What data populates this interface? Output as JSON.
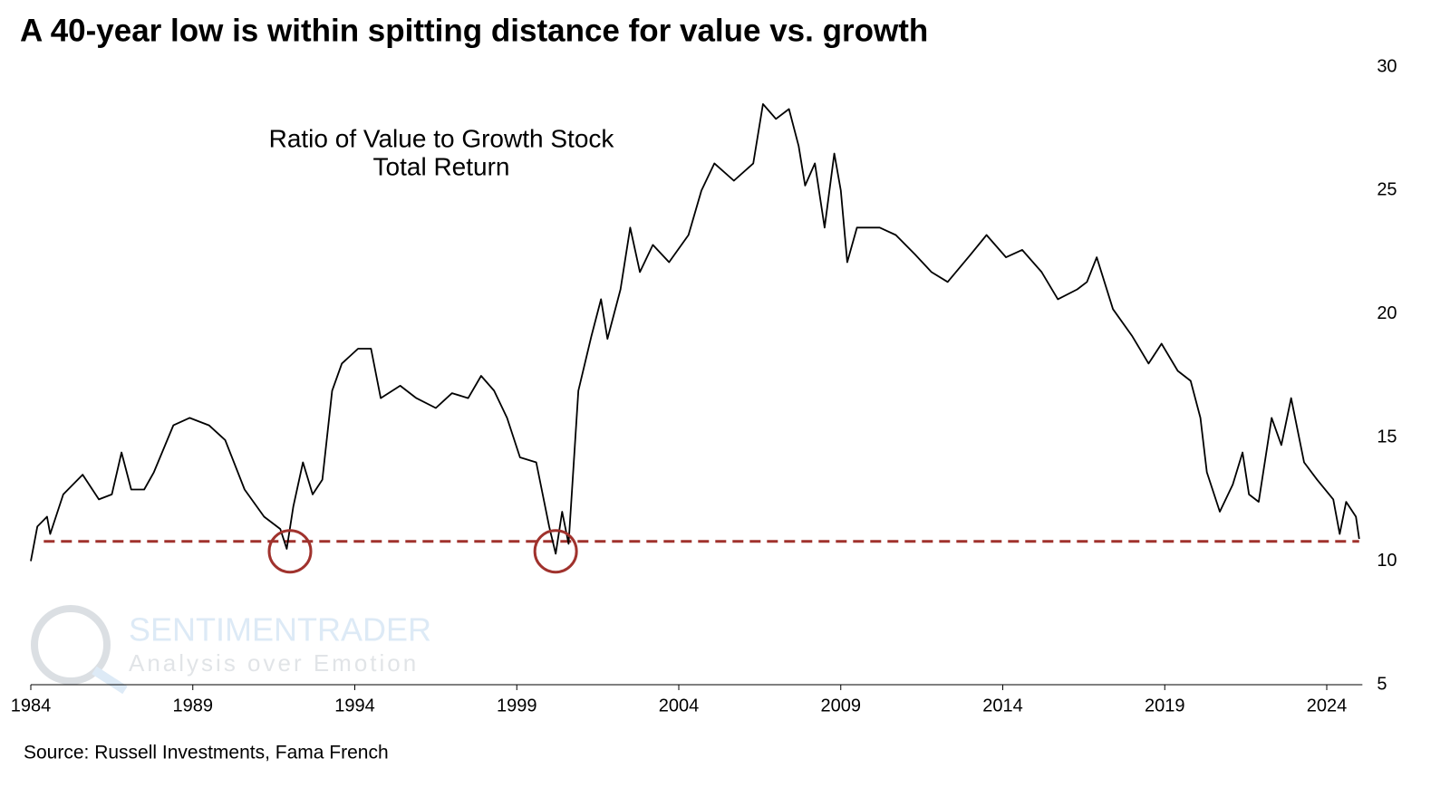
{
  "chart_data": {
    "type": "line",
    "title": "A 40-year low is within spitting distance for value vs. growth",
    "annotation": [
      "Ratio of Value to Growth Stock",
      "Total Return"
    ],
    "source": "Source: Russell Investments, Fama French",
    "watermark": [
      "SENTIMENTRADER",
      "Analysis over Emotion"
    ],
    "x": [
      1984.0,
      1984.2,
      1984.5,
      1984.6,
      1985.0,
      1985.6,
      1986.1,
      1986.5,
      1986.8,
      1987.1,
      1987.5,
      1987.8,
      1988.4,
      1988.9,
      1989.5,
      1990.0,
      1990.6,
      1991.2,
      1991.7,
      1991.9,
      1992.1,
      1992.4,
      1992.7,
      1993.0,
      1993.3,
      1993.6,
      1994.1,
      1994.5,
      1994.8,
      1995.4,
      1995.9,
      1996.5,
      1997.0,
      1997.5,
      1997.9,
      1998.3,
      1998.7,
      1999.1,
      1999.6,
      2000.0,
      2000.2,
      2000.4,
      2000.6,
      2000.9,
      2001.3,
      2001.6,
      2001.8,
      2002.2,
      2002.5,
      2002.8,
      2003.2,
      2003.7,
      2004.3,
      2004.7,
      2005.1,
      2005.7,
      2006.3,
      2006.6,
      2007.0,
      2007.4,
      2007.7,
      2007.9,
      2008.2,
      2008.5,
      2008.8,
      2009.0,
      2009.2,
      2009.5,
      2010.2,
      2010.7,
      2011.3,
      2011.8,
      2012.3,
      2013.0,
      2013.5,
      2014.1,
      2014.6,
      2015.2,
      2015.7,
      2016.3,
      2016.6,
      2016.9,
      2017.4,
      2018.0,
      2018.5,
      2018.9,
      2019.4,
      2019.8,
      2020.1,
      2020.3,
      2020.7,
      2021.1,
      2021.4,
      2021.6,
      2021.9,
      2022.3,
      2022.6,
      2022.9,
      2023.3,
      2023.7,
      2024.2,
      2024.4,
      2024.6,
      2024.9,
      2025.0
    ],
    "series": [
      {
        "name": "Ratio of Value to Growth Stock Total Return",
        "color": "#000000",
        "values": [
          10.0,
          11.4,
          11.8,
          11.1,
          12.7,
          13.5,
          12.5,
          12.7,
          14.4,
          12.9,
          12.9,
          13.6,
          15.5,
          15.8,
          15.5,
          14.9,
          12.9,
          11.8,
          11.3,
          10.5,
          12.2,
          14.0,
          12.7,
          13.3,
          16.9,
          18.0,
          18.6,
          18.6,
          16.6,
          17.1,
          16.6,
          16.2,
          16.8,
          16.6,
          17.5,
          16.9,
          15.8,
          14.2,
          14.0,
          11.4,
          10.3,
          12.0,
          10.7,
          16.9,
          19.1,
          20.6,
          19.0,
          21.0,
          23.5,
          21.7,
          22.8,
          22.1,
          23.2,
          25.0,
          26.1,
          25.4,
          26.1,
          28.5,
          27.9,
          28.3,
          26.8,
          25.2,
          26.1,
          23.5,
          26.5,
          25.0,
          22.1,
          23.5,
          23.5,
          23.2,
          22.4,
          21.7,
          21.3,
          22.4,
          23.2,
          22.3,
          22.6,
          21.7,
          20.6,
          21.0,
          21.3,
          22.3,
          20.2,
          19.1,
          18.0,
          18.8,
          17.7,
          17.3,
          15.8,
          13.6,
          12.0,
          13.1,
          14.4,
          12.7,
          12.4,
          15.8,
          14.7,
          16.6,
          14.0,
          13.3,
          12.5,
          11.1,
          12.4,
          11.8,
          10.9
        ]
      }
    ],
    "reference_line": {
      "value": 10.8,
      "color": "#a0322d",
      "style": "dashed",
      "xlim": [
        1984.4,
        2025.0
      ]
    },
    "highlights": [
      {
        "x": 1992.0,
        "y": 10.4,
        "color": "#a0322d"
      },
      {
        "x": 2000.2,
        "y": 10.4,
        "color": "#a0322d"
      }
    ],
    "xlim": [
      1984,
      2025.1
    ],
    "xticks": [
      1984,
      1989,
      1994,
      1999,
      2004,
      2009,
      2014,
      2019,
      2024
    ],
    "ylim": [
      5,
      30
    ],
    "yticks": [
      5,
      10,
      15,
      20,
      25,
      30
    ],
    "y_axis_side": "right",
    "grid": false
  }
}
